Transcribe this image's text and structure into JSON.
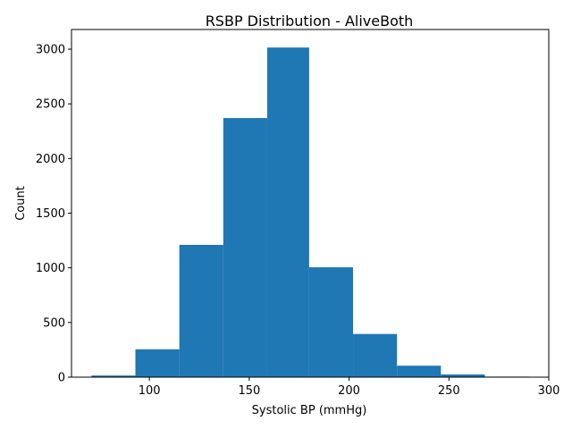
{
  "chart_data": {
    "type": "bar",
    "title": "RSBP Distribution - AliveBoth",
    "xlabel": "Systolic BP (mmHg)",
    "ylabel": "Count",
    "bin_edges": [
      71,
      93,
      115,
      137,
      159,
      180,
      202,
      224,
      246,
      268,
      290
    ],
    "values": [
      15,
      255,
      1210,
      2370,
      3015,
      1005,
      395,
      105,
      25,
      5
    ],
    "xlim": [
      61,
      300
    ],
    "ylim": [
      0,
      3180
    ],
    "xticks": [
      100,
      150,
      200,
      250,
      300
    ],
    "yticks": [
      0,
      500,
      1000,
      1500,
      2000,
      2500,
      3000
    ],
    "bar_color": "#1f77b4",
    "grid": false,
    "legend": "none"
  }
}
